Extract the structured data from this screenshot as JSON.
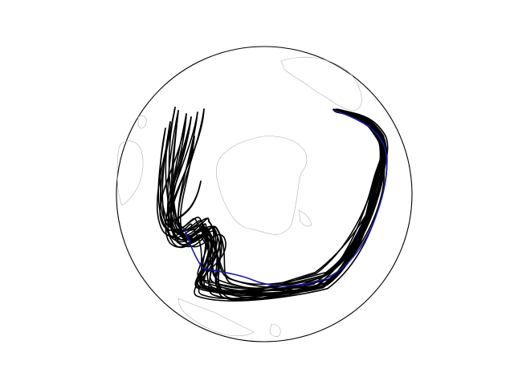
{
  "map": {
    "projection": "orthographic",
    "colors": {
      "background": "#ffffff",
      "globe_edge": "#000000",
      "coastline": "#b0b0b0",
      "ensemble_track": "#000000",
      "highlight_track": "#1a1aa8"
    },
    "coastlines": [
      "antarctica",
      "south-america",
      "africa",
      "australia",
      "new-zealand"
    ],
    "track_counts": {
      "ensemble": 24,
      "highlight": 1
    }
  }
}
